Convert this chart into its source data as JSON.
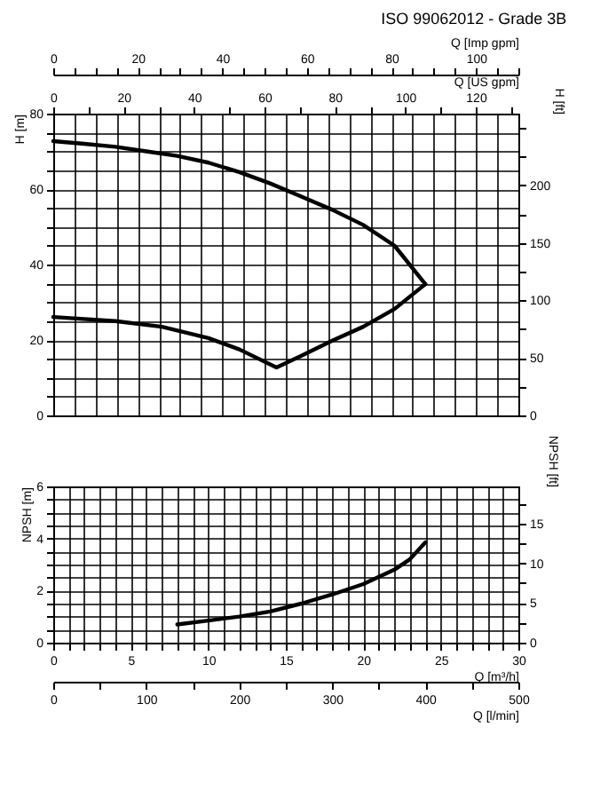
{
  "chart_data": [
    {
      "type": "line",
      "title": "ISO 99062012 - Grade 3B",
      "xlabel": "Q [Imp gpm]",
      "ylabel": "H [m]",
      "y2label": "H [ft]",
      "x2label": "Q [US gpm]",
      "grid": true,
      "xlim": [
        0,
        110
      ],
      "xticks": [
        0,
        {
          "value": 5,
          "label": null
        },
        {
          "value": 10,
          "label": null
        },
        {
          "value": 15,
          "label": null
        },
        20,
        {
          "value": 25,
          "label": null
        },
        {
          "value": 30,
          "label": null
        },
        {
          "value": 35,
          "label": null
        },
        40,
        {
          "value": 45,
          "label": null
        },
        {
          "value": 50,
          "label": null
        },
        {
          "value": 55,
          "label": null
        },
        60,
        {
          "value": 65,
          "label": null
        },
        {
          "value": 70,
          "label": null
        },
        {
          "value": 75,
          "label": null
        },
        80,
        {
          "value": 85,
          "label": null
        },
        {
          "value": 90,
          "label": null
        },
        {
          "value": 95,
          "label": null
        },
        100,
        {
          "value": 105,
          "label": null
        },
        {
          "value": 110,
          "label": null
        }
      ],
      "x2lim": [
        0,
        132.1
      ],
      "x2ticks": [
        0,
        {
          "value": 10,
          "label": null
        },
        20,
        {
          "value": 30,
          "label": null
        },
        40,
        {
          "value": 50,
          "label": null
        },
        60,
        {
          "value": 70,
          "label": null
        },
        80,
        {
          "value": 90,
          "label": null
        },
        100,
        {
          "value": 110,
          "label": null
        },
        120,
        {
          "value": 130,
          "label": null
        }
      ],
      "ylim": [
        0,
        80
      ],
      "yticks": [
        0,
        {
          "value": 5,
          "label": null
        },
        {
          "value": 10,
          "label": null
        },
        {
          "value": 15,
          "label": null
        },
        20,
        {
          "value": 25,
          "label": null
        },
        {
          "value": 30,
          "label": null
        },
        {
          "value": 35,
          "label": null
        },
        40,
        {
          "value": 45,
          "label": null
        },
        {
          "value": 50,
          "label": null
        },
        {
          "value": 55,
          "label": null
        },
        60,
        {
          "value": 65,
          "label": null
        },
        {
          "value": 70,
          "label": null
        },
        {
          "value": 75,
          "label": null
        },
        80
      ],
      "y2lim": [
        0,
        262.5
      ],
      "y2ticks": [
        0,
        {
          "value": 25,
          "label": null
        },
        50,
        {
          "value": 75,
          "label": null
        },
        100,
        {
          "value": 125,
          "label": null
        },
        150,
        {
          "value": 175,
          "label": null
        },
        200,
        {
          "value": 225,
          "label": null
        },
        {
          "value": 250,
          "label": null
        }
      ],
      "series": [
        {
          "color": "#000000",
          "x": [
            0,
            7.3,
            14.7,
            22,
            29.3,
            36.7,
            44,
            51.3,
            58.7,
            66,
            73.3,
            80.7,
            88
          ],
          "values": [
            72.7,
            72,
            71.2,
            70,
            68.8,
            67,
            64.5,
            61.5,
            58,
            54.5,
            50.5,
            45,
            34.8
          ]
        },
        {
          "color": "#000000",
          "x": [
            0,
            14.7,
            25.7,
            36.7,
            44,
            52.8,
            58.7,
            66,
            73.3,
            80.7,
            88
          ],
          "values": [
            26.1,
            25,
            23.5,
            20.5,
            17.5,
            12.7,
            15.8,
            19.8,
            23.5,
            28.2,
            34.8
          ]
        }
      ]
    },
    {
      "type": "line",
      "ylabel": "NPSH [m]",
      "y2label": "NPSH [ft]",
      "xlabel": "Q [m³/h]",
      "x2label": "Q [l/min]",
      "grid": true,
      "xlim": [
        0,
        30
      ],
      "xticks": [
        0,
        {
          "value": 1,
          "label": null
        },
        {
          "value": 2,
          "label": null
        },
        {
          "value": 3,
          "label": null
        },
        {
          "value": 4,
          "label": null
        },
        5,
        {
          "value": 6,
          "label": null
        },
        {
          "value": 7,
          "label": null
        },
        {
          "value": 8,
          "label": null
        },
        {
          "value": 9,
          "label": null
        },
        10,
        {
          "value": 11,
          "label": null
        },
        {
          "value": 12,
          "label": null
        },
        {
          "value": 13,
          "label": null
        },
        {
          "value": 14,
          "label": null
        },
        15,
        {
          "value": 16,
          "label": null
        },
        {
          "value": 17,
          "label": null
        },
        {
          "value": 18,
          "label": null
        },
        {
          "value": 19,
          "label": null
        },
        20,
        {
          "value": 21,
          "label": null
        },
        {
          "value": 22,
          "label": null
        },
        {
          "value": 23,
          "label": null
        },
        {
          "value": 24,
          "label": null
        },
        25,
        {
          "value": 26,
          "label": null
        },
        {
          "value": 27,
          "label": null
        },
        {
          "value": 28,
          "label": null
        },
        {
          "value": 29,
          "label": null
        },
        30
      ],
      "x2lim": [
        0,
        500
      ],
      "x2ticks": [
        0,
        {
          "value": 50,
          "label": null
        },
        100,
        {
          "value": 150,
          "label": null
        },
        200,
        {
          "value": 250,
          "label": null
        },
        300,
        {
          "value": 350,
          "label": null
        },
        400,
        {
          "value": 450,
          "label": null
        },
        500
      ],
      "ylim": [
        0,
        6
      ],
      "yticks": [
        0,
        {
          "value": 0.5,
          "label": null
        },
        {
          "value": 1,
          "label": null
        },
        {
          "value": 1.5,
          "label": null
        },
        2,
        {
          "value": 2.5,
          "label": null
        },
        {
          "value": 3,
          "label": null
        },
        {
          "value": 3.5,
          "label": null
        },
        4,
        {
          "value": 4.5,
          "label": null
        },
        {
          "value": 5,
          "label": null
        },
        {
          "value": 5.5,
          "label": null
        },
        6
      ],
      "y2lim": [
        0,
        19.685
      ],
      "y2ticks": [
        0,
        {
          "value": 2.5,
          "label": null
        },
        5,
        {
          "value": 7.5,
          "label": null
        },
        10,
        {
          "value": 12.5,
          "label": null
        },
        15,
        {
          "value": 17.5,
          "label": null
        }
      ],
      "series": [
        {
          "color": "#000000",
          "x": [
            8,
            10,
            12,
            14,
            16,
            18,
            20,
            22,
            23,
            24
          ],
          "values": [
            0.7,
            0.85,
            1.0,
            1.2,
            1.5,
            1.85,
            2.25,
            2.8,
            3.2,
            3.85
          ]
        }
      ]
    }
  ]
}
